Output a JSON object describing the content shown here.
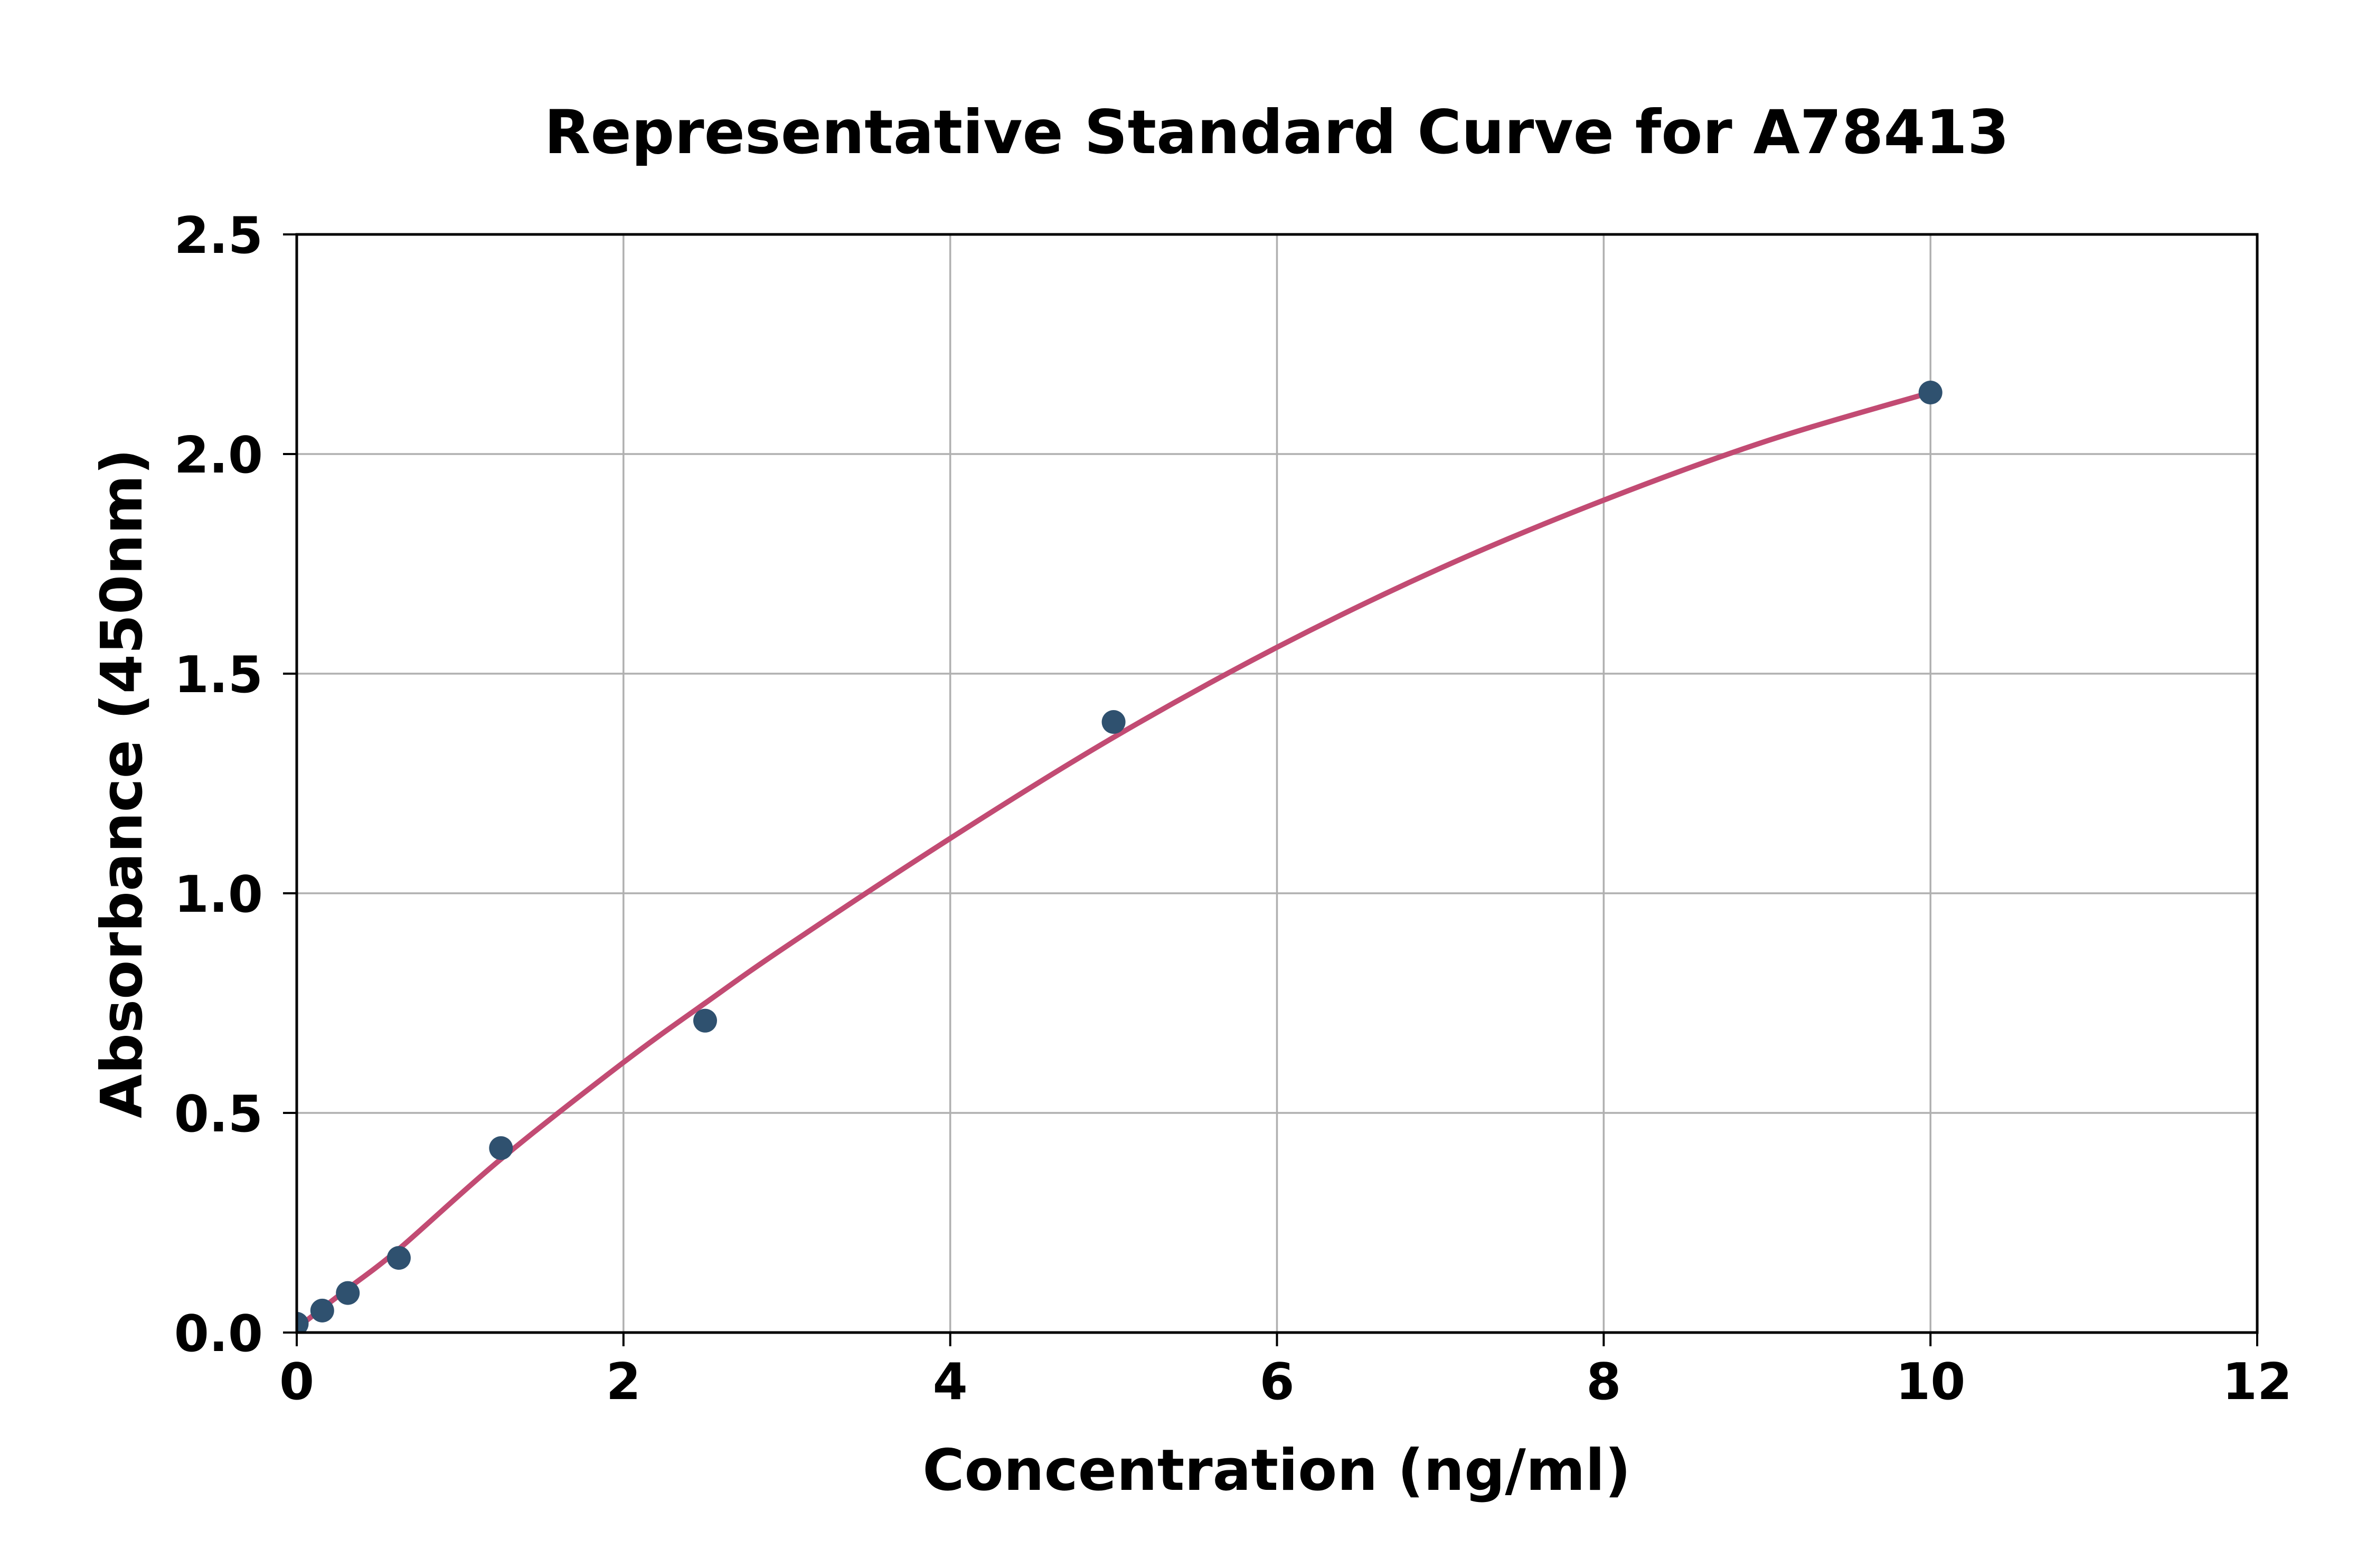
{
  "figure": {
    "background_color": "#ffffff"
  },
  "chart_data": {
    "type": "scatter",
    "title": "Representative Standard Curve for A78413",
    "xlabel": "Concentration (ng/ml)",
    "ylabel": "Absorbance (450nm)",
    "xlim": [
      0,
      12
    ],
    "ylim": [
      0,
      2.5
    ],
    "x_ticks": [
      0,
      2,
      4,
      6,
      8,
      10,
      12
    ],
    "x_tick_labels": [
      "0",
      "2",
      "4",
      "6",
      "8",
      "10",
      "12"
    ],
    "y_ticks": [
      0,
      0.5,
      1,
      1.5,
      2,
      2.5
    ],
    "y_tick_labels": [
      "0.0",
      "0.5",
      "1.0",
      "1.5",
      "2.0",
      "2.5"
    ],
    "grid": true,
    "legend_position": "none",
    "series": [
      {
        "name": "standard-points",
        "type": "scatter",
        "points": [
          [
            0,
            0.02
          ],
          [
            0.156,
            0.05
          ],
          [
            0.3125,
            0.09
          ],
          [
            0.625,
            0.17
          ],
          [
            1.25,
            0.42
          ],
          [
            2.5,
            0.71
          ],
          [
            5,
            1.39
          ],
          [
            10,
            2.14
          ]
        ]
      },
      {
        "name": "fitted-curve",
        "type": "line",
        "points": [
          [
            0,
            0.01
          ],
          [
            0.156,
            0.055
          ],
          [
            0.3125,
            0.1
          ],
          [
            0.625,
            0.19
          ],
          [
            1.25,
            0.395
          ],
          [
            2.0,
            0.615
          ],
          [
            2.5,
            0.75
          ],
          [
            3.0,
            0.88
          ],
          [
            4.0,
            1.125
          ],
          [
            5.0,
            1.355
          ],
          [
            6.0,
            1.56
          ],
          [
            7.0,
            1.74
          ],
          [
            8.0,
            1.895
          ],
          [
            9.0,
            2.03
          ],
          [
            10.0,
            2.14
          ]
        ]
      }
    ],
    "colors": {
      "marker": "#2F516F",
      "curve": "#C24B73",
      "grid": "#B0B0B0",
      "axis": "#000000",
      "text": "#000000"
    }
  }
}
